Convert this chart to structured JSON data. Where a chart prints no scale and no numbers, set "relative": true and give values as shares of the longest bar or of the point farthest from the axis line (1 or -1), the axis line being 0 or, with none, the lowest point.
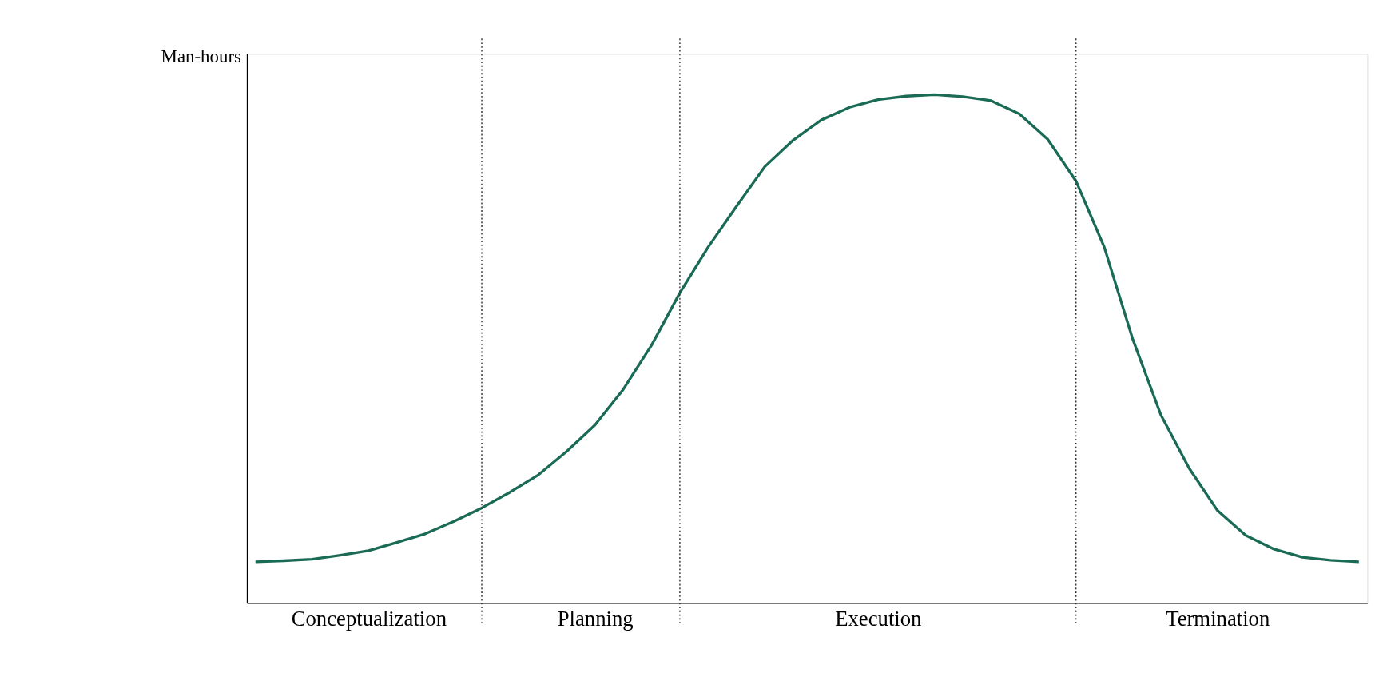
{
  "chart_data": {
    "type": "line",
    "ylabel": "Man-hours",
    "relative": true,
    "tick_labels": "x",
    "marker": "none",
    "line_style": "solid",
    "categories": [
      null,
      null,
      null,
      null,
      "Conceptualization",
      null,
      null,
      null,
      null,
      null,
      null,
      null,
      "Planning",
      null,
      null,
      null,
      null,
      null,
      null,
      null,
      null,
      null,
      "Execution",
      null,
      null,
      null,
      null,
      null,
      null,
      null,
      null,
      null,
      null,
      null,
      "Termination",
      null,
      null,
      null,
      null,
      null
    ],
    "series": [
      {
        "color": "#1a6b56",
        "values": [
          0.081,
          0.083,
          0.086,
          0.094,
          0.103,
          0.119,
          0.136,
          0.16,
          0.187,
          0.218,
          0.252,
          0.298,
          0.35,
          0.42,
          0.507,
          0.61,
          0.7,
          0.78,
          0.858,
          0.91,
          0.95,
          0.975,
          0.99,
          0.997,
          1,
          0.996,
          0.988,
          0.962,
          0.912,
          0.83,
          0.7,
          0.52,
          0.37,
          0.265,
          0.182,
          0.133,
          0.106,
          0.09,
          0.084,
          0.081
        ]
      }
    ],
    "grid": "x"
  }
}
